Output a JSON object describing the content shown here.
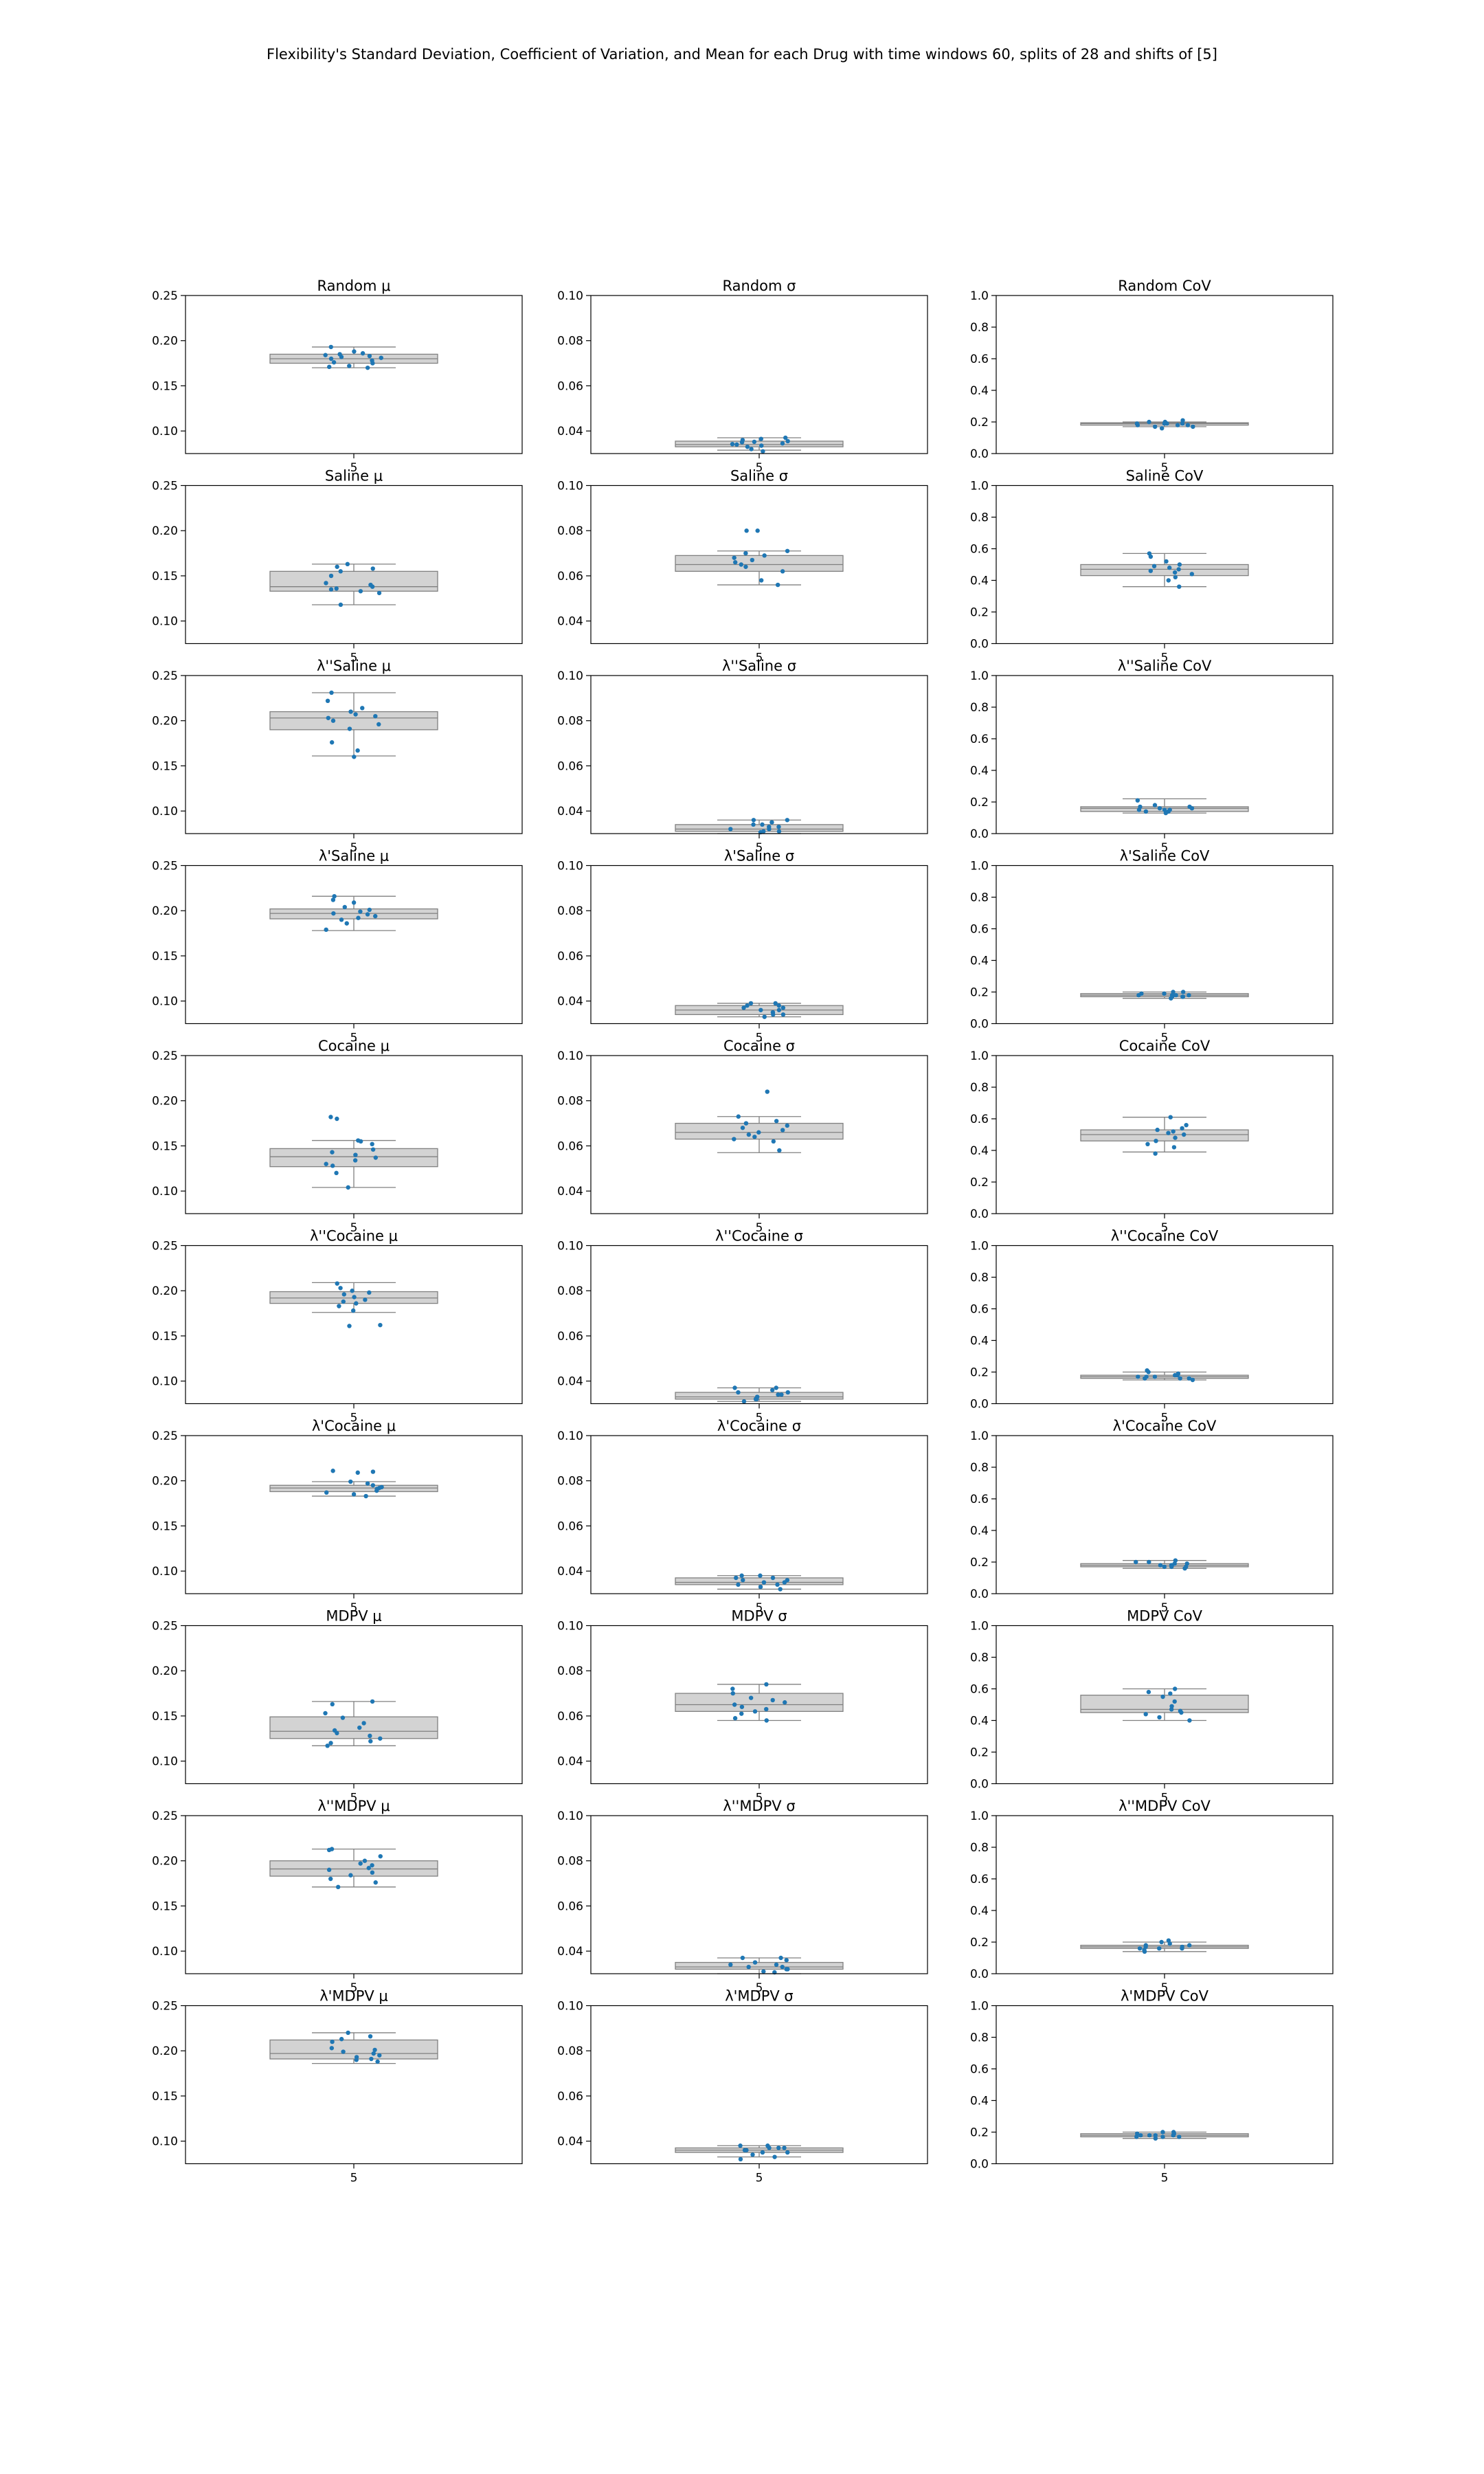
{
  "figure": {
    "suptitle": "Flexibility's Standard Deviation, Coefficient of Variation, and Mean for each Drug with time windows 60, splits of 28 and shifts of [5]",
    "box_fill": "#d3d3d3",
    "box_edge": "#808080",
    "point_color": "#1f77b4"
  },
  "chart_data": [
    {
      "type": "box",
      "title": "Random μ",
      "categories": [
        "5"
      ],
      "ylim": [
        0.075,
        0.25
      ],
      "yticks": [
        "0.10",
        "0.15",
        "0.20",
        "0.25"
      ],
      "box": {
        "whisker_low": 0.17,
        "q1": 0.175,
        "median": 0.18,
        "q3": 0.185,
        "whisker_high": 0.193
      },
      "points": [
        0.17,
        0.171,
        0.172,
        0.175,
        0.176,
        0.178,
        0.18,
        0.181,
        0.182,
        0.183,
        0.184,
        0.185,
        0.186,
        0.188,
        0.193
      ]
    },
    {
      "type": "box",
      "title": "Random σ",
      "categories": [
        "5"
      ],
      "ylim": [
        0.03,
        0.1
      ],
      "yticks": [
        "0.04",
        "0.06",
        "0.08",
        "0.10"
      ],
      "box": {
        "whisker_low": 0.0315,
        "q1": 0.033,
        "median": 0.034,
        "q3": 0.0355,
        "whisker_high": 0.037
      },
      "points": [
        0.031,
        0.032,
        0.033,
        0.0335,
        0.034,
        0.0342,
        0.0345,
        0.035,
        0.0352,
        0.0355,
        0.036,
        0.0365,
        0.037
      ]
    },
    {
      "type": "box",
      "title": "Random CoV",
      "categories": [
        "5"
      ],
      "ylim": [
        0.0,
        1.0
      ],
      "yticks": [
        "0.0",
        "0.2",
        "0.4",
        "0.6",
        "0.8",
        "1.0"
      ],
      "box": {
        "whisker_low": 0.17,
        "q1": 0.18,
        "median": 0.19,
        "q3": 0.195,
        "whisker_high": 0.2
      },
      "points": [
        0.16,
        0.17,
        0.18,
        0.18,
        0.19,
        0.19,
        0.19,
        0.2,
        0.2,
        0.21,
        0.18,
        0.17,
        0.19
      ]
    },
    {
      "type": "box",
      "title": "Saline μ",
      "categories": [
        "5"
      ],
      "ylim": [
        0.075,
        0.25
      ],
      "yticks": [
        "0.10",
        "0.15",
        "0.20",
        "0.25"
      ],
      "box": {
        "whisker_low": 0.118,
        "q1": 0.133,
        "median": 0.138,
        "q3": 0.155,
        "whisker_high": 0.163
      },
      "points": [
        0.118,
        0.131,
        0.133,
        0.135,
        0.136,
        0.138,
        0.14,
        0.142,
        0.15,
        0.155,
        0.158,
        0.16,
        0.163
      ]
    },
    {
      "type": "box",
      "title": "Saline σ",
      "categories": [
        "5"
      ],
      "ylim": [
        0.03,
        0.1
      ],
      "yticks": [
        "0.04",
        "0.06",
        "0.08",
        "0.10"
      ],
      "box": {
        "whisker_low": 0.056,
        "q1": 0.062,
        "median": 0.065,
        "q3": 0.069,
        "whisker_high": 0.071
      },
      "points": [
        0.056,
        0.058,
        0.062,
        0.064,
        0.065,
        0.066,
        0.067,
        0.068,
        0.069,
        0.07,
        0.071,
        0.08,
        0.08
      ]
    },
    {
      "type": "box",
      "title": "Saline CoV",
      "categories": [
        "5"
      ],
      "ylim": [
        0.0,
        1.0
      ],
      "yticks": [
        "0.0",
        "0.2",
        "0.4",
        "0.6",
        "0.8",
        "1.0"
      ],
      "box": {
        "whisker_low": 0.36,
        "q1": 0.43,
        "median": 0.47,
        "q3": 0.5,
        "whisker_high": 0.57
      },
      "points": [
        0.36,
        0.4,
        0.42,
        0.44,
        0.45,
        0.46,
        0.47,
        0.48,
        0.49,
        0.5,
        0.52,
        0.55,
        0.57
      ]
    },
    {
      "type": "box",
      "title": "λ''Saline μ",
      "categories": [
        "5"
      ],
      "ylim": [
        0.075,
        0.25
      ],
      "yticks": [
        "0.10",
        "0.15",
        "0.20",
        "0.25"
      ],
      "box": {
        "whisker_low": 0.161,
        "q1": 0.19,
        "median": 0.203,
        "q3": 0.21,
        "whisker_high": 0.231
      },
      "points": [
        0.16,
        0.167,
        0.176,
        0.191,
        0.196,
        0.2,
        0.203,
        0.205,
        0.207,
        0.21,
        0.214,
        0.222,
        0.231
      ]
    },
    {
      "type": "box",
      "title": "λ''Saline σ",
      "categories": [
        "5"
      ],
      "ylim": [
        0.03,
        0.1
      ],
      "yticks": [
        "0.04",
        "0.06",
        "0.08",
        "0.10"
      ],
      "box": {
        "whisker_low": 0.03,
        "q1": 0.031,
        "median": 0.032,
        "q3": 0.034,
        "whisker_high": 0.036
      },
      "points": [
        0.03,
        0.031,
        0.031,
        0.032,
        0.032,
        0.033,
        0.033,
        0.034,
        0.034,
        0.035,
        0.036,
        0.036
      ]
    },
    {
      "type": "box",
      "title": "λ''Saline CoV",
      "categories": [
        "5"
      ],
      "ylim": [
        0.0,
        1.0
      ],
      "yticks": [
        "0.0",
        "0.2",
        "0.4",
        "0.6",
        "0.8",
        "1.0"
      ],
      "box": {
        "whisker_low": 0.13,
        "q1": 0.14,
        "median": 0.16,
        "q3": 0.17,
        "whisker_high": 0.22
      },
      "points": [
        0.13,
        0.14,
        0.15,
        0.15,
        0.16,
        0.16,
        0.17,
        0.17,
        0.18,
        0.21,
        0.15,
        0.14
      ]
    },
    {
      "type": "box",
      "title": "λ'Saline μ",
      "categories": [
        "5"
      ],
      "ylim": [
        0.075,
        0.25
      ],
      "yticks": [
        "0.10",
        "0.15",
        "0.20",
        "0.25"
      ],
      "box": {
        "whisker_low": 0.178,
        "q1": 0.191,
        "median": 0.197,
        "q3": 0.202,
        "whisker_high": 0.216
      },
      "points": [
        0.179,
        0.186,
        0.19,
        0.192,
        0.194,
        0.196,
        0.197,
        0.199,
        0.201,
        0.204,
        0.209,
        0.212,
        0.216
      ]
    },
    {
      "type": "box",
      "title": "λ'Saline σ",
      "categories": [
        "5"
      ],
      "ylim": [
        0.03,
        0.1
      ],
      "yticks": [
        "0.04",
        "0.06",
        "0.08",
        "0.10"
      ],
      "box": {
        "whisker_low": 0.033,
        "q1": 0.034,
        "median": 0.036,
        "q3": 0.038,
        "whisker_high": 0.039
      },
      "points": [
        0.033,
        0.034,
        0.034,
        0.035,
        0.036,
        0.036,
        0.037,
        0.037,
        0.038,
        0.038,
        0.039,
        0.039
      ]
    },
    {
      "type": "box",
      "title": "λ'Saline CoV",
      "categories": [
        "5"
      ],
      "ylim": [
        0.0,
        1.0
      ],
      "yticks": [
        "0.0",
        "0.2",
        "0.4",
        "0.6",
        "0.8",
        "1.0"
      ],
      "box": {
        "whisker_low": 0.16,
        "q1": 0.17,
        "median": 0.18,
        "q3": 0.19,
        "whisker_high": 0.2
      },
      "points": [
        0.16,
        0.17,
        0.17,
        0.18,
        0.18,
        0.18,
        0.19,
        0.19,
        0.2,
        0.2,
        0.17,
        0.18
      ]
    },
    {
      "type": "box",
      "title": "Cocaine μ",
      "categories": [
        "5"
      ],
      "ylim": [
        0.075,
        0.25
      ],
      "yticks": [
        "0.10",
        "0.15",
        "0.20",
        "0.25"
      ],
      "box": {
        "whisker_low": 0.104,
        "q1": 0.127,
        "median": 0.138,
        "q3": 0.147,
        "whisker_high": 0.156
      },
      "points": [
        0.104,
        0.12,
        0.128,
        0.13,
        0.134,
        0.137,
        0.14,
        0.143,
        0.146,
        0.152,
        0.155,
        0.156,
        0.18,
        0.182
      ]
    },
    {
      "type": "box",
      "title": "Cocaine σ",
      "categories": [
        "5"
      ],
      "ylim": [
        0.03,
        0.1
      ],
      "yticks": [
        "0.04",
        "0.06",
        "0.08",
        "0.10"
      ],
      "box": {
        "whisker_low": 0.057,
        "q1": 0.063,
        "median": 0.066,
        "q3": 0.07,
        "whisker_high": 0.073
      },
      "points": [
        0.058,
        0.062,
        0.063,
        0.064,
        0.065,
        0.066,
        0.067,
        0.068,
        0.069,
        0.07,
        0.071,
        0.073,
        0.084
      ]
    },
    {
      "type": "box",
      "title": "Cocaine CoV",
      "categories": [
        "5"
      ],
      "ylim": [
        0.0,
        1.0
      ],
      "yticks": [
        "0.0",
        "0.2",
        "0.4",
        "0.6",
        "0.8",
        "1.0"
      ],
      "box": {
        "whisker_low": 0.39,
        "q1": 0.46,
        "median": 0.5,
        "q3": 0.53,
        "whisker_high": 0.61
      },
      "points": [
        0.38,
        0.42,
        0.44,
        0.46,
        0.48,
        0.5,
        0.51,
        0.52,
        0.53,
        0.54,
        0.56,
        0.61
      ]
    },
    {
      "type": "box",
      "title": "λ''Cocaine μ",
      "categories": [
        "5"
      ],
      "ylim": [
        0.075,
        0.25
      ],
      "yticks": [
        "0.10",
        "0.15",
        "0.20",
        "0.25"
      ],
      "box": {
        "whisker_low": 0.176,
        "q1": 0.186,
        "median": 0.192,
        "q3": 0.199,
        "whisker_high": 0.209
      },
      "points": [
        0.161,
        0.162,
        0.178,
        0.183,
        0.186,
        0.188,
        0.19,
        0.193,
        0.196,
        0.198,
        0.2,
        0.203,
        0.208
      ]
    },
    {
      "type": "box",
      "title": "λ''Cocaine σ",
      "categories": [
        "5"
      ],
      "ylim": [
        0.03,
        0.1
      ],
      "yticks": [
        "0.04",
        "0.06",
        "0.08",
        "0.10"
      ],
      "box": {
        "whisker_low": 0.031,
        "q1": 0.032,
        "median": 0.033,
        "q3": 0.035,
        "whisker_high": 0.037
      },
      "points": [
        0.031,
        0.032,
        0.032,
        0.033,
        0.033,
        0.034,
        0.034,
        0.035,
        0.035,
        0.036,
        0.037,
        0.037
      ]
    },
    {
      "type": "box",
      "title": "λ''Cocaine CoV",
      "categories": [
        "5"
      ],
      "ylim": [
        0.0,
        1.0
      ],
      "yticks": [
        "0.0",
        "0.2",
        "0.4",
        "0.6",
        "0.8",
        "1.0"
      ],
      "box": {
        "whisker_low": 0.15,
        "q1": 0.16,
        "median": 0.17,
        "q3": 0.18,
        "whisker_high": 0.2
      },
      "points": [
        0.15,
        0.16,
        0.16,
        0.17,
        0.17,
        0.18,
        0.18,
        0.19,
        0.2,
        0.21,
        0.16,
        0.17
      ]
    },
    {
      "type": "box",
      "title": "λ'Cocaine μ",
      "categories": [
        "5"
      ],
      "ylim": [
        0.075,
        0.25
      ],
      "yticks": [
        "0.10",
        "0.15",
        "0.20",
        "0.25"
      ],
      "box": {
        "whisker_low": 0.183,
        "q1": 0.188,
        "median": 0.192,
        "q3": 0.195,
        "whisker_high": 0.199
      },
      "points": [
        0.183,
        0.185,
        0.187,
        0.189,
        0.191,
        0.192,
        0.193,
        0.195,
        0.197,
        0.199,
        0.209,
        0.21,
        0.211
      ]
    },
    {
      "type": "box",
      "title": "λ'Cocaine σ",
      "categories": [
        "5"
      ],
      "ylim": [
        0.03,
        0.1
      ],
      "yticks": [
        "0.04",
        "0.06",
        "0.08",
        "0.10"
      ],
      "box": {
        "whisker_low": 0.032,
        "q1": 0.034,
        "median": 0.035,
        "q3": 0.037,
        "whisker_high": 0.038
      },
      "points": [
        0.032,
        0.033,
        0.034,
        0.034,
        0.035,
        0.035,
        0.036,
        0.036,
        0.037,
        0.037,
        0.038,
        0.038
      ]
    },
    {
      "type": "box",
      "title": "λ'Cocaine CoV",
      "categories": [
        "5"
      ],
      "ylim": [
        0.0,
        1.0
      ],
      "yticks": [
        "0.0",
        "0.2",
        "0.4",
        "0.6",
        "0.8",
        "1.0"
      ],
      "box": {
        "whisker_low": 0.16,
        "q1": 0.17,
        "median": 0.18,
        "q3": 0.19,
        "whisker_high": 0.21
      },
      "points": [
        0.16,
        0.17,
        0.17,
        0.18,
        0.18,
        0.19,
        0.19,
        0.2,
        0.2,
        0.21,
        0.18,
        0.17
      ]
    },
    {
      "type": "box",
      "title": "MDPV μ",
      "categories": [
        "5"
      ],
      "ylim": [
        0.075,
        0.25
      ],
      "yticks": [
        "0.10",
        "0.15",
        "0.20",
        "0.25"
      ],
      "box": {
        "whisker_low": 0.117,
        "q1": 0.125,
        "median": 0.133,
        "q3": 0.149,
        "whisker_high": 0.166
      },
      "points": [
        0.117,
        0.12,
        0.122,
        0.125,
        0.128,
        0.131,
        0.134,
        0.137,
        0.142,
        0.148,
        0.153,
        0.163,
        0.166
      ]
    },
    {
      "type": "box",
      "title": "MDPV σ",
      "categories": [
        "5"
      ],
      "ylim": [
        0.03,
        0.1
      ],
      "yticks": [
        "0.04",
        "0.06",
        "0.08",
        "0.10"
      ],
      "box": {
        "whisker_low": 0.058,
        "q1": 0.062,
        "median": 0.065,
        "q3": 0.07,
        "whisker_high": 0.074
      },
      "points": [
        0.058,
        0.059,
        0.061,
        0.062,
        0.063,
        0.064,
        0.065,
        0.066,
        0.067,
        0.068,
        0.07,
        0.072,
        0.074
      ]
    },
    {
      "type": "box",
      "title": "MDPV CoV",
      "categories": [
        "5"
      ],
      "ylim": [
        0.0,
        1.0
      ],
      "yticks": [
        "0.0",
        "0.2",
        "0.4",
        "0.6",
        "0.8",
        "1.0"
      ],
      "box": {
        "whisker_low": 0.4,
        "q1": 0.45,
        "median": 0.47,
        "q3": 0.56,
        "whisker_high": 0.6
      },
      "points": [
        0.4,
        0.42,
        0.44,
        0.45,
        0.46,
        0.47,
        0.49,
        0.52,
        0.55,
        0.57,
        0.58,
        0.6
      ]
    },
    {
      "type": "box",
      "title": "λ''MDPV μ",
      "categories": [
        "5"
      ],
      "ylim": [
        0.075,
        0.25
      ],
      "yticks": [
        "0.10",
        "0.15",
        "0.20",
        "0.25"
      ],
      "box": {
        "whisker_low": 0.171,
        "q1": 0.183,
        "median": 0.191,
        "q3": 0.2,
        "whisker_high": 0.213
      },
      "points": [
        0.171,
        0.176,
        0.18,
        0.184,
        0.187,
        0.19,
        0.192,
        0.195,
        0.197,
        0.2,
        0.205,
        0.212,
        0.213
      ]
    },
    {
      "type": "box",
      "title": "λ''MDPV σ",
      "categories": [
        "5"
      ],
      "ylim": [
        0.03,
        0.1
      ],
      "yticks": [
        "0.04",
        "0.06",
        "0.08",
        "0.10"
      ],
      "box": {
        "whisker_low": 0.03,
        "q1": 0.032,
        "median": 0.033,
        "q3": 0.035,
        "whisker_high": 0.037
      },
      "points": [
        0.03,
        0.031,
        0.032,
        0.032,
        0.033,
        0.033,
        0.034,
        0.034,
        0.035,
        0.036,
        0.037,
        0.037
      ]
    },
    {
      "type": "box",
      "title": "λ''MDPV CoV",
      "categories": [
        "5"
      ],
      "ylim": [
        0.0,
        1.0
      ],
      "yticks": [
        "0.0",
        "0.2",
        "0.4",
        "0.6",
        "0.8",
        "1.0"
      ],
      "box": {
        "whisker_low": 0.14,
        "q1": 0.16,
        "median": 0.17,
        "q3": 0.18,
        "whisker_high": 0.2
      },
      "points": [
        0.14,
        0.15,
        0.16,
        0.16,
        0.17,
        0.17,
        0.18,
        0.18,
        0.19,
        0.2,
        0.21,
        0.16
      ]
    },
    {
      "type": "box",
      "title": "λ'MDPV μ",
      "categories": [
        "5"
      ],
      "ylim": [
        0.075,
        0.25
      ],
      "yticks": [
        "0.10",
        "0.15",
        "0.20",
        "0.25"
      ],
      "box": {
        "whisker_low": 0.186,
        "q1": 0.191,
        "median": 0.197,
        "q3": 0.212,
        "whisker_high": 0.22
      },
      "points": [
        0.188,
        0.19,
        0.191,
        0.193,
        0.195,
        0.197,
        0.199,
        0.201,
        0.203,
        0.21,
        0.213,
        0.216,
        0.22
      ]
    },
    {
      "type": "box",
      "title": "λ'MDPV σ",
      "categories": [
        "5"
      ],
      "ylim": [
        0.03,
        0.1
      ],
      "yticks": [
        "0.04",
        "0.06",
        "0.08",
        "0.10"
      ],
      "box": {
        "whisker_low": 0.033,
        "q1": 0.035,
        "median": 0.036,
        "q3": 0.037,
        "whisker_high": 0.038
      },
      "points": [
        0.032,
        0.033,
        0.034,
        0.035,
        0.035,
        0.036,
        0.036,
        0.037,
        0.037,
        0.038,
        0.038,
        0.037
      ]
    },
    {
      "type": "box",
      "title": "λ'MDPV CoV",
      "categories": [
        "5"
      ],
      "ylim": [
        0.0,
        1.0
      ],
      "yticks": [
        "0.0",
        "0.2",
        "0.4",
        "0.6",
        "0.8",
        "1.0"
      ],
      "box": {
        "whisker_low": 0.16,
        "q1": 0.17,
        "median": 0.18,
        "q3": 0.19,
        "whisker_high": 0.2
      },
      "points": [
        0.16,
        0.17,
        0.17,
        0.18,
        0.18,
        0.18,
        0.19,
        0.19,
        0.2,
        0.2,
        0.17,
        0.18
      ]
    }
  ]
}
